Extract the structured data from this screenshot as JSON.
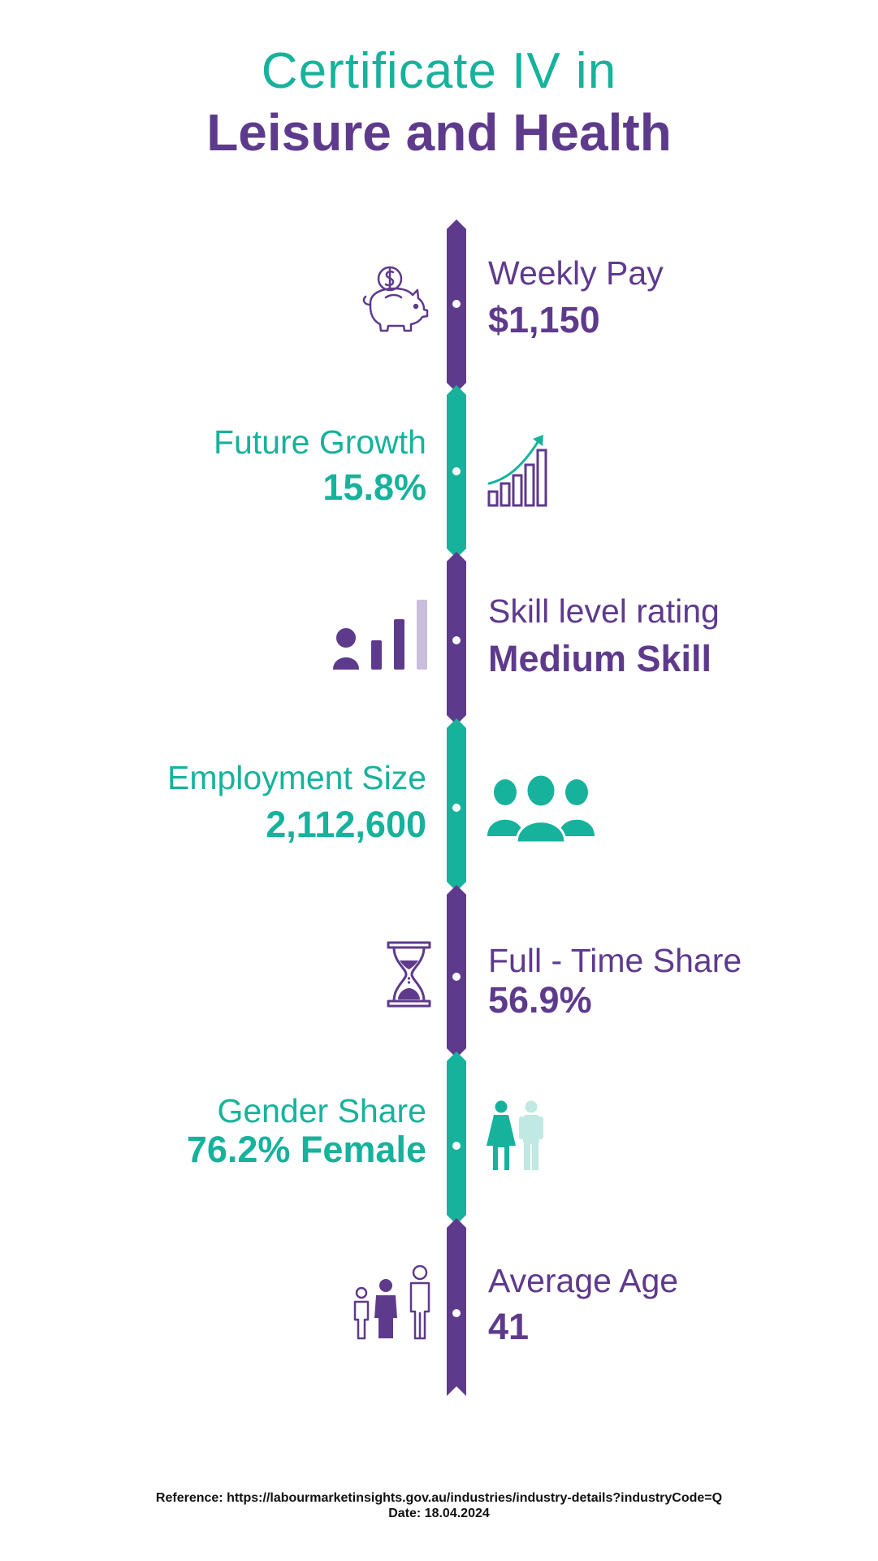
{
  "title": {
    "line1": "Certificate IV in",
    "line2": "Leisure and Health"
  },
  "stats": [
    {
      "label": "Weekly Pay",
      "value": "$1,150",
      "icon": "piggy-bank-icon"
    },
    {
      "label": "Future Growth",
      "value": "15.8%",
      "icon": "growth-chart-icon"
    },
    {
      "label": "Skill level rating",
      "value": "Medium Skill",
      "icon": "skill-level-icon"
    },
    {
      "label": "Employment Size",
      "value": "2,112,600",
      "icon": "people-group-icon"
    },
    {
      "label": "Full - Time Share",
      "value": "56.9%",
      "icon": "hourglass-icon"
    },
    {
      "label": "Gender Share",
      "value": "76.2% Female",
      "icon": "gender-icon"
    },
    {
      "label": "Average Age",
      "value": "41",
      "icon": "family-age-icon"
    }
  ],
  "footer": {
    "reference": "Reference: https://labourmarketinsights.gov.au/industries/industry-details?industryCode=Q",
    "date": "Date: 18.04.2024"
  },
  "colors": {
    "purple": "#5e3a8c",
    "teal": "#17b29c",
    "light_purple": "#c9bedb",
    "light_teal": "#bfe9e2"
  }
}
